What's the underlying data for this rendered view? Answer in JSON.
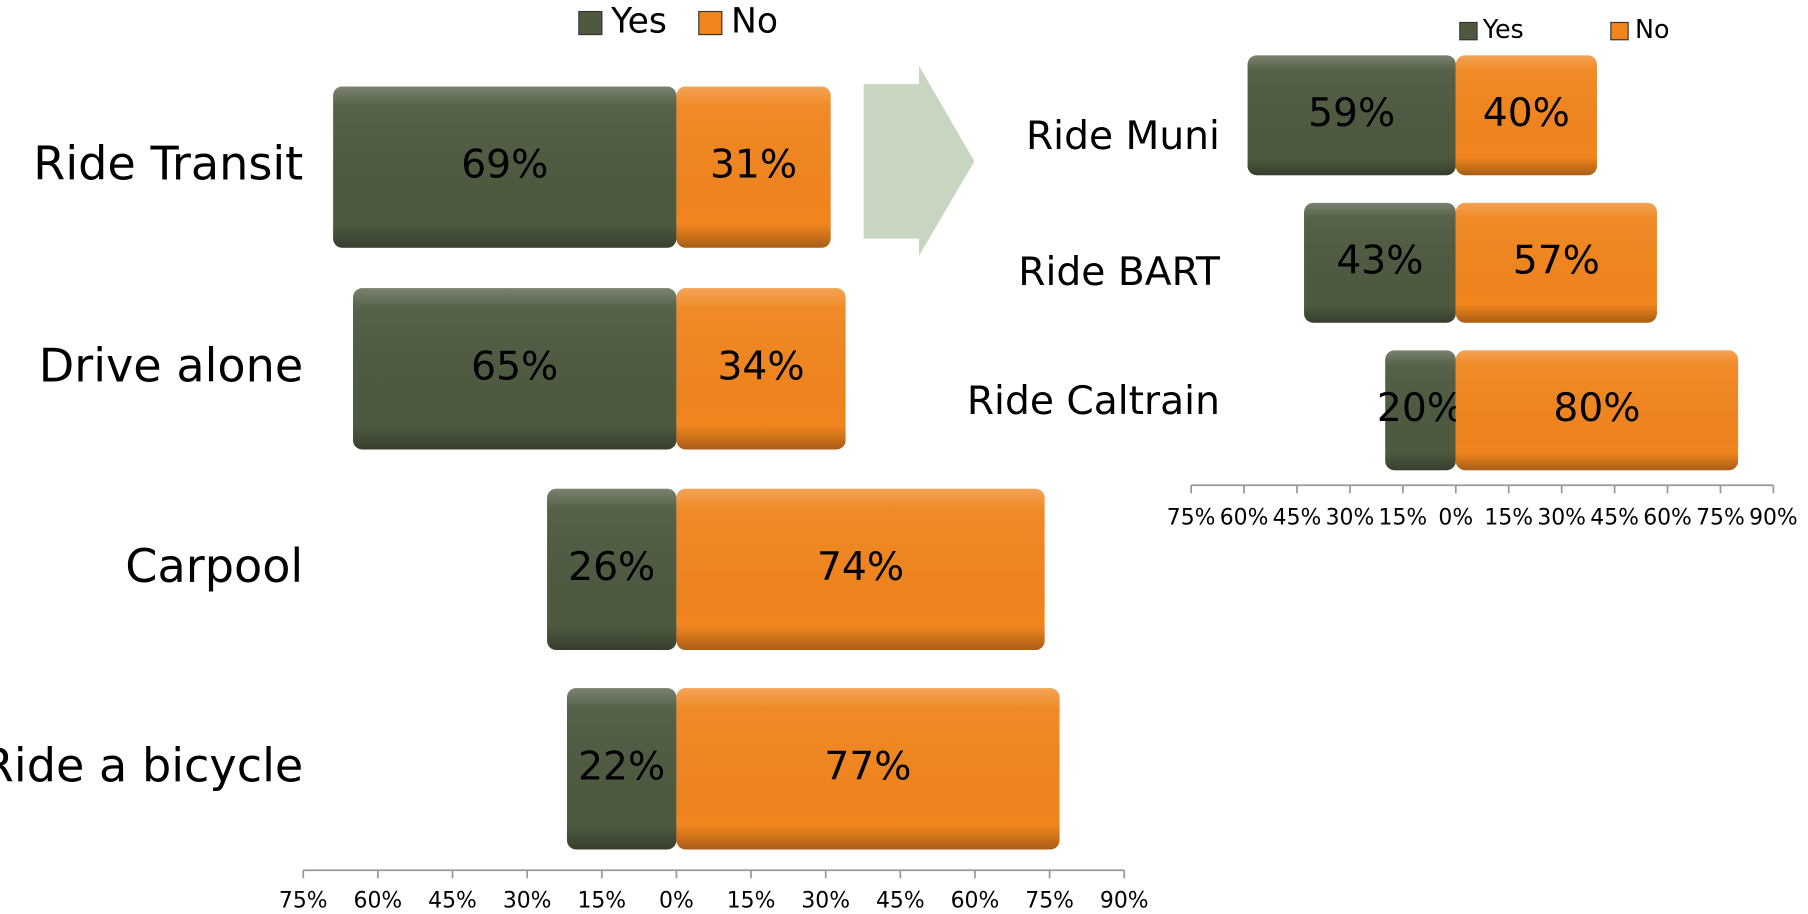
{
  "chart_data": [
    {
      "type": "bar",
      "orientation": "horizontal",
      "diverging": true,
      "legend": "top",
      "categories": [
        "Ride Transit",
        "Drive alone",
        "Carpool",
        "Ride a bicycle"
      ],
      "series": [
        {
          "name": "Yes",
          "color": "#4d5a40",
          "values": [
            69,
            65,
            26,
            22
          ],
          "value_labels": [
            "69%",
            "65%",
            "26%",
            "22%"
          ]
        },
        {
          "name": "No",
          "color": "#f0851e",
          "values": [
            31,
            34,
            74,
            77
          ],
          "value_labels": [
            "31%",
            "34%",
            "74%",
            "77%"
          ]
        }
      ],
      "xlim": [
        -75,
        90
      ],
      "xticks": [
        {
          "value": -75,
          "label": "75%"
        },
        {
          "value": -60,
          "label": "60%"
        },
        {
          "value": -45,
          "label": "45%"
        },
        {
          "value": -30,
          "label": "30%"
        },
        {
          "value": -15,
          "label": "15%"
        },
        {
          "value": 0,
          "label": "0%"
        },
        {
          "value": 15,
          "label": "15%"
        },
        {
          "value": 30,
          "label": "30%"
        },
        {
          "value": 45,
          "label": "45%"
        },
        {
          "value": 60,
          "label": "60%"
        },
        {
          "value": 75,
          "label": "75%"
        },
        {
          "value": 90,
          "label": "90%"
        }
      ]
    },
    {
      "type": "bar",
      "orientation": "horizontal",
      "diverging": true,
      "legend": "top",
      "categories": [
        "Ride Muni",
        "Ride BART",
        "Ride Caltrain"
      ],
      "series": [
        {
          "name": "Yes",
          "color": "#4d5a40",
          "values": [
            59,
            43,
            20
          ],
          "value_labels": [
            "59%",
            "43%",
            "20%"
          ]
        },
        {
          "name": "No",
          "color": "#f0851e",
          "values": [
            40,
            57,
            80
          ],
          "value_labels": [
            "40%",
            "57%",
            "80%"
          ]
        }
      ],
      "xlim": [
        -75,
        90
      ],
      "xticks": [
        {
          "value": -75,
          "label": "75%"
        },
        {
          "value": -60,
          "label": "60%"
        },
        {
          "value": -45,
          "label": "45%"
        },
        {
          "value": -30,
          "label": "30%"
        },
        {
          "value": -15,
          "label": "15%"
        },
        {
          "value": 0,
          "label": "0%"
        },
        {
          "value": 15,
          "label": "15%"
        },
        {
          "value": 30,
          "label": "30%"
        },
        {
          "value": 45,
          "label": "45%"
        },
        {
          "value": 60,
          "label": "60%"
        },
        {
          "value": 75,
          "label": "75%"
        },
        {
          "value": 90,
          "label": "90%"
        }
      ]
    }
  ]
}
